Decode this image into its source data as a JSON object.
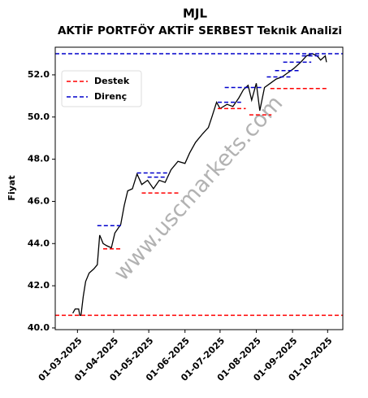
{
  "chart_data": {
    "type": "line",
    "title": "MJL",
    "subtitle": "AKTİF PORTFÖY AKTİF SERBEST Teknik Analizi",
    "y_label": "Fiyat",
    "watermark": "www.uscmarkets.com",
    "color": "#000000",
    "legend": "upper left",
    "x": [
      "2025-02-25",
      "2025-02-27",
      "2025-03-02",
      "2025-03-03",
      "2025-03-04",
      "2025-03-06",
      "2025-03-08",
      "2025-03-11",
      "2025-03-15",
      "2025-03-18",
      "2025-03-20",
      "2025-03-23",
      "2025-03-26",
      "2025-03-30",
      "2025-04-02",
      "2025-04-07",
      "2025-04-10",
      "2025-04-13",
      "2025-04-17",
      "2025-04-21",
      "2025-04-25",
      "2025-04-30",
      "2025-05-05",
      "2025-05-10",
      "2025-05-15",
      "2025-05-20",
      "2025-05-26",
      "2025-06-01",
      "2025-06-05",
      "2025-06-10",
      "2025-06-16",
      "2025-06-21",
      "2025-06-24",
      "2025-06-28",
      "2025-07-01",
      "2025-07-07",
      "2025-07-12",
      "2025-07-17",
      "2025-07-21",
      "2025-07-25",
      "2025-07-28",
      "2025-08-01",
      "2025-08-04",
      "2025-08-08",
      "2025-08-13",
      "2025-08-18",
      "2025-08-23",
      "2025-08-28",
      "2025-09-02",
      "2025-09-08",
      "2025-09-13",
      "2025-09-18",
      "2025-09-22",
      "2025-09-25",
      "2025-09-29",
      "2025-09-30"
    ],
    "values": [
      40.7,
      40.9,
      40.9,
      40.6,
      40.6,
      41.5,
      42.2,
      42.6,
      42.8,
      43.0,
      44.4,
      44.0,
      43.9,
      43.8,
      44.5,
      44.9,
      45.8,
      46.5,
      46.6,
      47.3,
      46.8,
      47.0,
      46.6,
      47.0,
      46.9,
      47.5,
      47.9,
      47.8,
      48.3,
      48.8,
      49.2,
      49.5,
      50.0,
      50.7,
      50.4,
      50.6,
      50.5,
      50.9,
      51.3,
      51.5,
      50.8,
      51.6,
      50.3,
      51.4,
      51.6,
      51.8,
      51.9,
      52.1,
      52.3,
      52.6,
      52.9,
      53.0,
      52.9,
      52.7,
      52.9,
      52.6
    ],
    "series": [
      {
        "name": "Destek",
        "color": "#ff0000",
        "segments": [
          {
            "start": "2025-02-10",
            "end": "2025-10-14",
            "value": 40.6
          },
          {
            "start": "2025-03-23",
            "end": "2025-04-08",
            "value": 43.75
          },
          {
            "start": "2025-04-25",
            "end": "2025-05-27",
            "value": 46.4
          },
          {
            "start": "2025-06-29",
            "end": "2025-07-23",
            "value": 50.4
          },
          {
            "start": "2025-07-26",
            "end": "2025-08-14",
            "value": 50.1
          },
          {
            "start": "2025-08-13",
            "end": "2025-10-01",
            "value": 51.35
          }
        ]
      },
      {
        "name": "Direnç",
        "color": "#0000cc",
        "segments": [
          {
            "start": "2025-02-10",
            "end": "2025-10-14",
            "value": 53.0
          },
          {
            "start": "2025-03-18",
            "end": "2025-04-08",
            "value": 44.85
          },
          {
            "start": "2025-04-21",
            "end": "2025-05-19",
            "value": 47.35
          },
          {
            "start": "2025-04-30",
            "end": "2025-05-17",
            "value": 47.15
          },
          {
            "start": "2025-06-29",
            "end": "2025-07-19",
            "value": 50.7
          },
          {
            "start": "2025-07-05",
            "end": "2025-08-07",
            "value": 51.4
          },
          {
            "start": "2025-08-10",
            "end": "2025-08-31",
            "value": 51.9
          },
          {
            "start": "2025-08-17",
            "end": "2025-09-07",
            "value": 52.2
          },
          {
            "start": "2025-08-24",
            "end": "2025-09-17",
            "value": 52.6
          },
          {
            "start": "2025-09-09",
            "end": "2025-09-25",
            "value": 52.9
          }
        ]
      }
    ],
    "xlim": [
      "2025-02-10",
      "2025-10-14"
    ],
    "xticks": [
      {
        "value": "2025-03-01",
        "label": "01-03-2025"
      },
      {
        "value": "2025-04-01",
        "label": "01-04-2025"
      },
      {
        "value": "2025-05-01",
        "label": "01-05-2025"
      },
      {
        "value": "2025-06-01",
        "label": "01-06-2025"
      },
      {
        "value": "2025-07-01",
        "label": "01-07-2025"
      },
      {
        "value": "2025-08-01",
        "label": "01-08-2025"
      },
      {
        "value": "2025-09-01",
        "label": "01-09-2025"
      },
      {
        "value": "2025-10-01",
        "label": "01-10-2025"
      }
    ],
    "ylim": [
      39.92,
      53.31
    ],
    "yticks": [
      {
        "value": 40,
        "label": "40.0"
      },
      {
        "value": 42,
        "label": "42.0"
      },
      {
        "value": 44,
        "label": "44.0"
      },
      {
        "value": 46,
        "label": "46.0"
      },
      {
        "value": 48,
        "label": "48.0"
      },
      {
        "value": 50,
        "label": "50.0"
      },
      {
        "value": 52,
        "label": "52.0"
      }
    ]
  }
}
